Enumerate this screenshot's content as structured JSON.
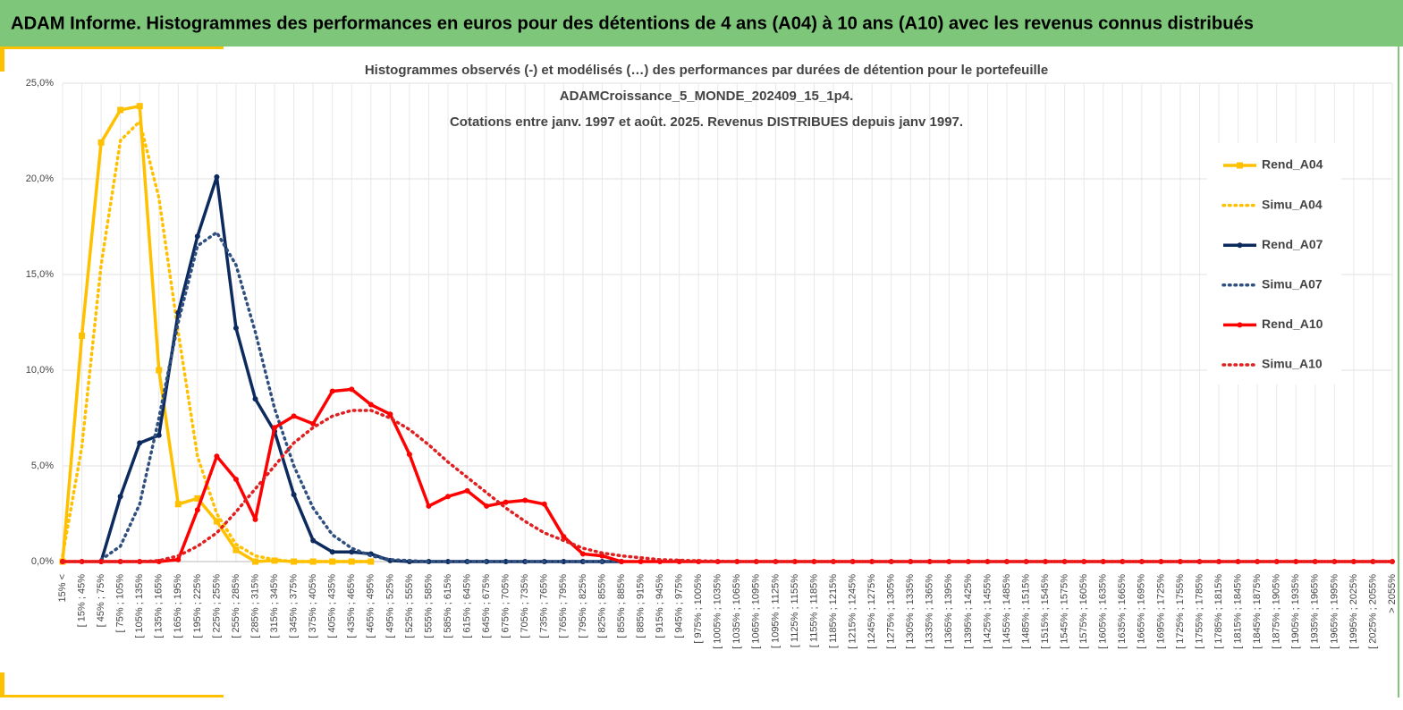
{
  "header": {
    "title": "ADAM Informe. Histogrammes des performances en euros pour des détentions de 4 ans (A04) à 10 ans (A10) avec les revenus connus distribués"
  },
  "chart_data": {
    "type": "line",
    "title": [
      "Histogrammes observés (-) et modélisés (…) des performances  par durées de détention pour le portefeuille",
      "ADAMCroissance_5_MONDE_202409_15_1p4.",
      "Cotations  entre janv. 1997 et août. 2025. Revenus DISTRIBUES depuis janv 1997."
    ],
    "categories": [
      "15% <",
      "[ 15% ; 45%",
      "[ 45% ; 75%",
      "[ 75% ; 105%",
      "[ 105% ; 135%",
      "[ 135% ; 165%",
      "[ 165% ; 195%",
      "[ 195% ; 225%",
      "[ 225% ; 255%",
      "[ 255% ; 285%",
      "[ 285% ; 315%",
      "[ 315% ; 345%",
      "[ 345% ; 375%",
      "[ 375% ; 405%",
      "[ 405% ; 435%",
      "[ 435% ; 465%",
      "[ 465% ; 495%",
      "[ 495% ; 525%",
      "[ 525% ; 555%",
      "[ 555% ; 585%",
      "[ 585% ; 615%",
      "[ 615% ; 645%",
      "[ 645% ; 675%",
      "[ 675% ; 705%",
      "[ 705% ; 735%",
      "[ 735% ; 765%",
      "[ 765% ; 795%",
      "[ 795% ; 825%",
      "[ 825% ; 855%",
      "[ 855% ; 885%",
      "[ 885% ; 915%",
      "[ 915% ; 945%",
      "[ 945% ; 975%",
      "[ 975% ; 1005%",
      "[ 1005% ; 1035%",
      "[ 1035% ; 1065%",
      "[ 1065% ; 1095%",
      "[ 1095% ; 1125%",
      "[ 1125% ; 1155%",
      "[ 1155% ; 1185%",
      "[ 1185% ; 1215%",
      "[ 1215% ; 1245%",
      "[ 1245% ; 1275%",
      "[ 1275% ; 1305%",
      "[ 1305% ; 1335%",
      "[ 1335% ; 1365%",
      "[ 1365% ; 1395%",
      "[ 1395% ; 1425%",
      "[ 1425% ; 1455%",
      "[ 1455% ; 1485%",
      "[ 1485% ; 1515%",
      "[ 1515% ; 1545%",
      "[ 1545% ; 1575%",
      "[ 1575% ; 1605%",
      "[ 1605% ; 1635%",
      "[ 1635% ; 1665%",
      "[ 1665% ; 1695%",
      "[ 1695% ; 1725%",
      "[ 1725% ; 1755%",
      "[ 1755% ; 1785%",
      "[ 1785% ; 1815%",
      "[ 1815% ; 1845%",
      "[ 1845% ; 1875%",
      "[ 1875% ; 1905%",
      "[ 1905% ; 1935%",
      "[ 1935% ; 1965%",
      "[ 1965% ; 1995%",
      "[ 1995% ; 2025%",
      "[ 2025% ; 2055%",
      "> 2055%"
    ],
    "series": [
      {
        "name": "Rend_A04",
        "color": "#ffc000",
        "marker": "square",
        "dash": false,
        "values": [
          0,
          11.8,
          21.9,
          23.6,
          23.8,
          10.0,
          3.0,
          3.3,
          2.1,
          0.6,
          0,
          0.05,
          0,
          0,
          0,
          0,
          0,
          null,
          null,
          null,
          null,
          null,
          null,
          null,
          null,
          null,
          null,
          null,
          null,
          null,
          null,
          null,
          null,
          null,
          null,
          null,
          null,
          null,
          null,
          null,
          null,
          null,
          null,
          null,
          null,
          null,
          null,
          null,
          null,
          null,
          null,
          null,
          null,
          null,
          null,
          null,
          null,
          null,
          null,
          null,
          null,
          null,
          null,
          null,
          null,
          null,
          null,
          null,
          null,
          null
        ]
      },
      {
        "name": "Simu_A04",
        "color": "#ffc000",
        "marker": null,
        "dash": true,
        "values": [
          0.3,
          6,
          15.5,
          22,
          23,
          19,
          12,
          5.5,
          2.5,
          0.9,
          0.3,
          0.1,
          0,
          0,
          0,
          0,
          0,
          null,
          null,
          null,
          null,
          null,
          null,
          null,
          null,
          null,
          null,
          null,
          null,
          null,
          null,
          null,
          null,
          null,
          null,
          null,
          null,
          null,
          null,
          null,
          null,
          null,
          null,
          null,
          null,
          null,
          null,
          null,
          null,
          null,
          null,
          null,
          null,
          null,
          null,
          null,
          null,
          null,
          null,
          null,
          null,
          null,
          null,
          null,
          null,
          null,
          null,
          null,
          null,
          null
        ]
      },
      {
        "name": "Rend_A07",
        "color": "#0d2a5e",
        "marker": "circle",
        "dash": false,
        "values": [
          null,
          null,
          0,
          3.4,
          6.2,
          6.6,
          13.0,
          17.0,
          20.1,
          12.2,
          8.5,
          6.8,
          3.5,
          1.1,
          0.5,
          0.5,
          0.4,
          0.05,
          0,
          0,
          0,
          0,
          0,
          0,
          0,
          0,
          0,
          0,
          0,
          0,
          null,
          null,
          null,
          null,
          null,
          null,
          null,
          null,
          null,
          null,
          null,
          null,
          null,
          null,
          null,
          null,
          null,
          null,
          null,
          null,
          null,
          null,
          null,
          null,
          null,
          null,
          null,
          null,
          null,
          null,
          null,
          null,
          null,
          null,
          null,
          null,
          null,
          null,
          null,
          null
        ]
      },
      {
        "name": "Simu_A07",
        "color": "#2f4f7f",
        "marker": null,
        "dash": true,
        "values": [
          null,
          null,
          0.1,
          0.8,
          3.0,
          7.5,
          12.5,
          16.5,
          17.2,
          15.5,
          12,
          8,
          5,
          2.8,
          1.4,
          0.7,
          0.3,
          0.1,
          0.05,
          0,
          0,
          0,
          0,
          0,
          0,
          0,
          0,
          0,
          0,
          0,
          null,
          null,
          null,
          null,
          null,
          null,
          null,
          null,
          null,
          null,
          null,
          null,
          null,
          null,
          null,
          null,
          null,
          null,
          null,
          null,
          null,
          null,
          null,
          null,
          null,
          null,
          null,
          null,
          null,
          null,
          null,
          null,
          null,
          null,
          null,
          null,
          null,
          null,
          null,
          null
        ]
      },
      {
        "name": "Rend_A10",
        "color": "#ff0000",
        "marker": "circle",
        "dash": false,
        "values": [
          0,
          0,
          0,
          0,
          0,
          0,
          0.1,
          2.7,
          5.5,
          4.3,
          2.2,
          7.0,
          7.6,
          7.2,
          8.9,
          9.0,
          8.2,
          7.7,
          5.6,
          2.9,
          3.4,
          3.7,
          2.9,
          3.1,
          3.2,
          3.0,
          1.3,
          0.4,
          0.3,
          0,
          0,
          0,
          0,
          0,
          0,
          0,
          0,
          0,
          0,
          0,
          0,
          0,
          0,
          0,
          0,
          0,
          0,
          0,
          0,
          0,
          0,
          0,
          0,
          0,
          0,
          0,
          0,
          0,
          0,
          0,
          0,
          0,
          0,
          0,
          0,
          0,
          0,
          0,
          0,
          0
        ]
      },
      {
        "name": "Simu_A10",
        "color": "#e02020",
        "marker": null,
        "dash": true,
        "values": [
          0,
          0,
          0,
          0,
          0,
          0.05,
          0.3,
          0.8,
          1.5,
          2.6,
          3.8,
          5.0,
          6.2,
          7.0,
          7.6,
          7.9,
          7.9,
          7.5,
          6.9,
          6.1,
          5.2,
          4.4,
          3.6,
          2.8,
          2.1,
          1.5,
          1.1,
          0.7,
          0.45,
          0.3,
          0.2,
          0.1,
          0.07,
          0.04,
          0.02,
          0,
          0,
          0,
          0,
          0,
          0,
          0,
          0,
          0,
          0,
          0,
          0,
          0,
          0,
          0,
          0,
          0,
          0,
          0,
          0,
          0,
          0,
          0,
          0,
          0,
          0,
          0,
          0,
          0,
          0,
          0,
          0,
          0,
          0,
          0
        ]
      }
    ],
    "ylim": [
      0,
      25
    ],
    "yticks": [
      {
        "value": 0,
        "label": "0,0%"
      },
      {
        "value": 5,
        "label": "5,0%"
      },
      {
        "value": 10,
        "label": "10,0%"
      },
      {
        "value": 15,
        "label": "15,0%"
      },
      {
        "value": 20,
        "label": "20,0%"
      },
      {
        "value": 25,
        "label": "25,0%"
      }
    ],
    "grid": true,
    "legend": "right"
  }
}
